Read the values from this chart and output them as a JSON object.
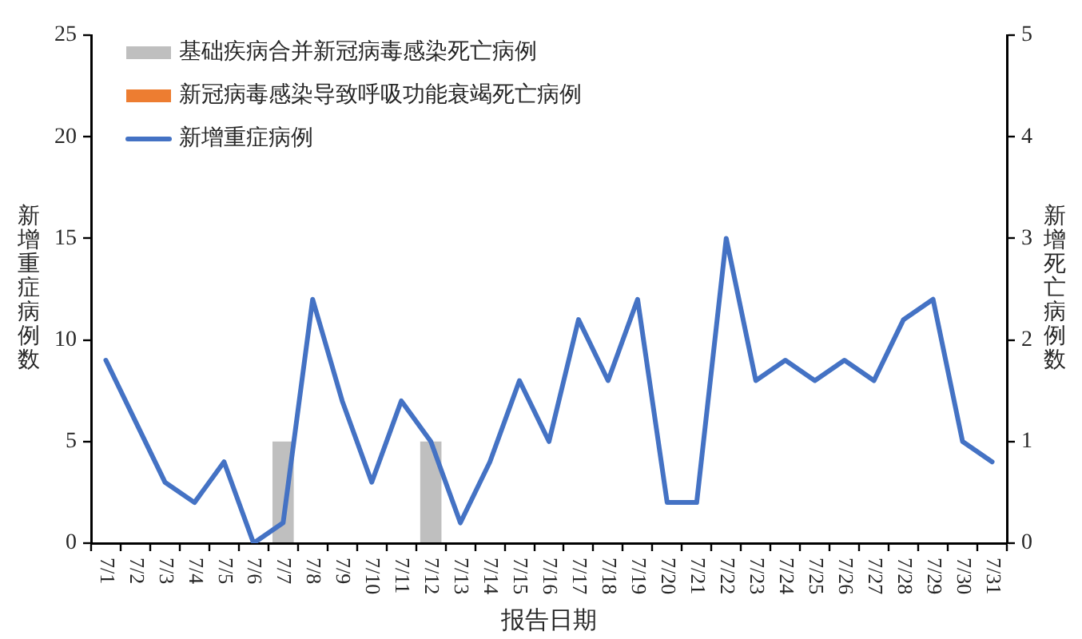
{
  "chart_data": {
    "type": "bar",
    "xlabel": "报告日期",
    "ylabel": "新增重症病例数",
    "y2label": "新增死亡病例数",
    "categories": [
      "7/1",
      "7/2",
      "7/3",
      "7/4",
      "7/5",
      "7/6",
      "7/7",
      "7/8",
      "7/9",
      "7/10",
      "7/11",
      "7/12",
      "7/13",
      "7/14",
      "7/15",
      "7/16",
      "7/17",
      "7/18",
      "7/19",
      "7/20",
      "7/21",
      "7/22",
      "7/23",
      "7/24",
      "7/25",
      "7/26",
      "7/27",
      "7/28",
      "7/29",
      "7/30",
      "7/31"
    ],
    "series": [
      {
        "name": "基础疾病合并新冠病毒感染死亡病例",
        "axis": "y2",
        "color": "#bfbfbf",
        "values": [
          null,
          null,
          null,
          null,
          null,
          null,
          1,
          null,
          null,
          null,
          null,
          1,
          null,
          null,
          null,
          null,
          null,
          null,
          null,
          null,
          null,
          null,
          null,
          null,
          null,
          null,
          null,
          null,
          null,
          null,
          null
        ]
      },
      {
        "name": "新冠病毒感染导致呼吸功能衰竭死亡病例",
        "axis": "y2",
        "color": "#ed7d31",
        "values": [
          null,
          null,
          null,
          null,
          null,
          null,
          null,
          null,
          null,
          null,
          null,
          null,
          null,
          null,
          null,
          null,
          null,
          null,
          null,
          null,
          null,
          null,
          null,
          null,
          null,
          null,
          null,
          null,
          null,
          null,
          null
        ]
      },
      {
        "name": "新增重症病例",
        "type": "line",
        "color": "#4472c4",
        "values": [
          9,
          6,
          3,
          2,
          4,
          0,
          1,
          12,
          7,
          3,
          7,
          5,
          1,
          4,
          8,
          5,
          11,
          8,
          12,
          2,
          2,
          15,
          8,
          9,
          8,
          9,
          8,
          11,
          12,
          5,
          4
        ]
      }
    ],
    "ylim": [
      0,
      25
    ],
    "yticks": [
      0,
      5,
      10,
      15,
      20,
      25
    ],
    "y2lim": [
      0,
      5
    ],
    "y2ticks": [
      0,
      1,
      2,
      3,
      4,
      5
    ],
    "legend": "top left",
    "marker": "none"
  }
}
